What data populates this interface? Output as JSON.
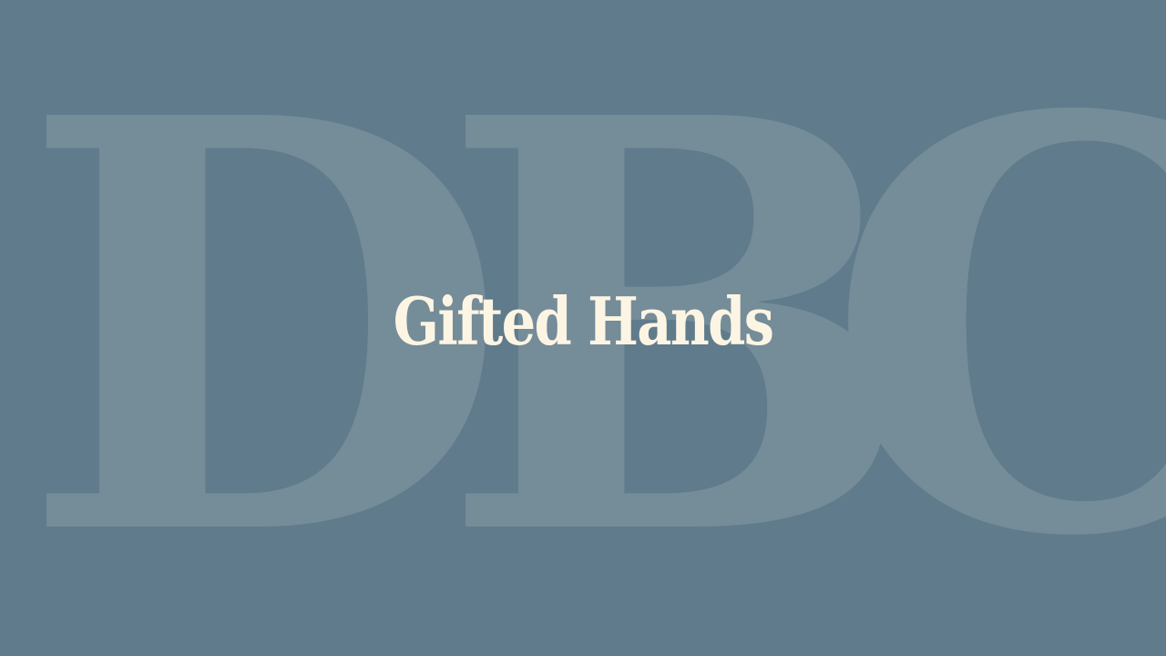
{
  "background_color": "#5f7b8c",
  "watermark": {
    "letters": [
      "D",
      "B",
      "C"
    ],
    "color": "#758c99"
  },
  "title": {
    "text": "Gifted Hands",
    "color": "#fdf5e4"
  }
}
